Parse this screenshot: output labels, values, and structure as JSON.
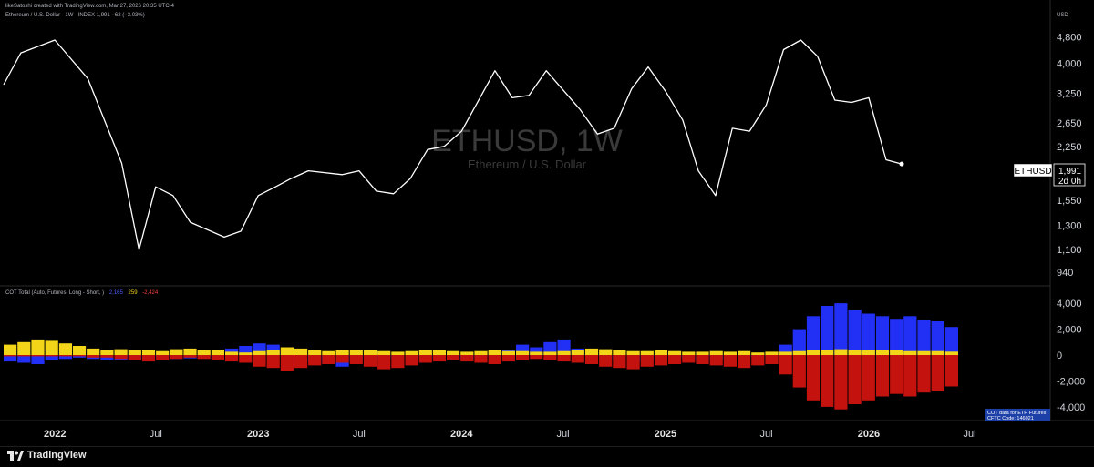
{
  "header": {
    "credit": "likeSatoshi created with TradingView.com, Mar 27, 2026 20:35 UTC-4",
    "symbol_line": "Ethereum / U.S. Dollar · 1W · INDEX  1,991  −62 (−3.03%)",
    "currency": "USD"
  },
  "watermark": {
    "ticker": "ETHUSD, 1W",
    "name": "Ethereum / U.S. Dollar"
  },
  "price_tag": {
    "symbol": "ETHUSD",
    "price": "1,991",
    "countdown": "2d 0h"
  },
  "indicator": {
    "legend": "COT Total (Auto, Futures, Long - Short, )",
    "val_blue": "2,165",
    "val_yellow": "259",
    "val_red": "-2,424",
    "note_line1": "COT data for ETH Futures",
    "note_line2": "CFTC Code: 146021"
  },
  "footer": {
    "brand": "TradingView"
  },
  "colors": {
    "price_line": "#ffffff",
    "bull": "#2230f5",
    "spec": "#f2d418",
    "bear": "#c4120e",
    "mid": "#f07a1b"
  },
  "chart_data": [
    {
      "type": "line",
      "title": "Ethereum / U.S. Dollar, 1W",
      "y_axis_ticks": [
        "4,800",
        "4,000",
        "3,250",
        "2,650",
        "2,250",
        "1,550",
        "1,300",
        "1,100",
        "940"
      ],
      "y_scale": "log",
      "ylim": [
        900,
        5400
      ],
      "x_ticks": [
        "2022",
        "Jul",
        "2023",
        "Jul",
        "2024",
        "Jul",
        "2025",
        "Jul",
        "2026",
        "Jul"
      ],
      "x": [
        "2021-10",
        "2021-11",
        "2022-01",
        "2022-03",
        "2022-05",
        "2022-06",
        "2022-07",
        "2022-08",
        "2022-09",
        "2022-11",
        "2022-12",
        "2023-01",
        "2023-02",
        "2023-03",
        "2023-04",
        "2023-06",
        "2023-07",
        "2023-08",
        "2023-09",
        "2023-10",
        "2023-11",
        "2023-12",
        "2024-01",
        "2024-03",
        "2024-04",
        "2024-05",
        "2024-06",
        "2024-08",
        "2024-09",
        "2024-10",
        "2024-11",
        "2024-12",
        "2025-01",
        "2025-02",
        "2025-03",
        "2025-04",
        "2025-05",
        "2025-06",
        "2025-07",
        "2025-08",
        "2025-09",
        "2025-10",
        "2025-11",
        "2025-12",
        "2026-01",
        "2026-02",
        "2026-03"
      ],
      "values": [
        3450,
        4300,
        4700,
        3600,
        2000,
        1100,
        1700,
        1600,
        1330,
        1200,
        1250,
        1600,
        1700,
        1800,
        1900,
        1850,
        1900,
        1650,
        1620,
        1800,
        2200,
        2250,
        2500,
        3800,
        3150,
        3200,
        3800,
        2900,
        2450,
        2550,
        3350,
        3900,
        3300,
        2700,
        1900,
        1600,
        2550,
        2500,
        3000,
        4400,
        4700,
        4200,
        3100,
        3050,
        3150,
        2050,
        1991
      ],
      "last_value": 1991
    },
    {
      "type": "bar",
      "title": "COT Total (Auto, Futures, Long - Short, )",
      "y_axis_ticks": [
        "4,000",
        "2,000",
        "0",
        "-2,000",
        "-4,000"
      ],
      "ylim": [
        -4500,
        4500
      ],
      "series": [
        {
          "name": "Blue",
          "color": "#2230f5",
          "values": [
            -500,
            -600,
            -700,
            -400,
            -300,
            -200,
            -300,
            -350,
            -400,
            -400,
            -300,
            -200,
            -300,
            -250,
            -200,
            -300,
            500,
            700,
            900,
            800,
            400,
            -500,
            -600,
            -700,
            -900,
            -500,
            -300,
            -200,
            -300,
            -200,
            -100,
            -300,
            -400,
            -300,
            -200,
            -100,
            400,
            800,
            600,
            1000,
            1200,
            500,
            200,
            -300,
            -400,
            -600,
            -500,
            -300,
            -200,
            -300,
            -500,
            -400,
            -300,
            -200,
            -150,
            -100,
            800,
            2000,
            3000,
            3800,
            4000,
            3500,
            3200,
            3000,
            2800,
            3000,
            2700,
            2600,
            2165
          ]
        },
        {
          "name": "Yellow",
          "color": "#f2d418",
          "values": [
            800,
            1000,
            1200,
            1100,
            900,
            700,
            500,
            400,
            450,
            400,
            350,
            300,
            450,
            500,
            400,
            350,
            250,
            200,
            300,
            400,
            600,
            500,
            400,
            300,
            350,
            400,
            350,
            300,
            250,
            300,
            350,
            400,
            300,
            250,
            300,
            350,
            300,
            300,
            250,
            250,
            300,
            400,
            500,
            450,
            400,
            300,
            300,
            350,
            300,
            250,
            250,
            300,
            250,
            300,
            200,
            250,
            250,
            300,
            350,
            400,
            450,
            400,
            400,
            350,
            350,
            300,
            300,
            300,
            259
          ]
        },
        {
          "name": "Red",
          "color": "#c4120e",
          "values": [
            -100,
            -100,
            -100,
            -100,
            -100,
            -100,
            -200,
            -200,
            -300,
            -400,
            -500,
            -400,
            -300,
            -200,
            -300,
            -400,
            -500,
            -600,
            -900,
            -1000,
            -1200,
            -1000,
            -800,
            -700,
            -600,
            -700,
            -900,
            -1100,
            -1000,
            -800,
            -600,
            -500,
            -400,
            -500,
            -600,
            -700,
            -500,
            -400,
            -300,
            -400,
            -500,
            -600,
            -700,
            -900,
            -1000,
            -1100,
            -900,
            -800,
            -700,
            -600,
            -700,
            -800,
            -900,
            -1000,
            -800,
            -700,
            -1500,
            -2500,
            -3500,
            -4000,
            -4200,
            -3800,
            -3500,
            -3200,
            -3000,
            -3200,
            -2900,
            -2800,
            -2424
          ]
        }
      ]
    }
  ]
}
